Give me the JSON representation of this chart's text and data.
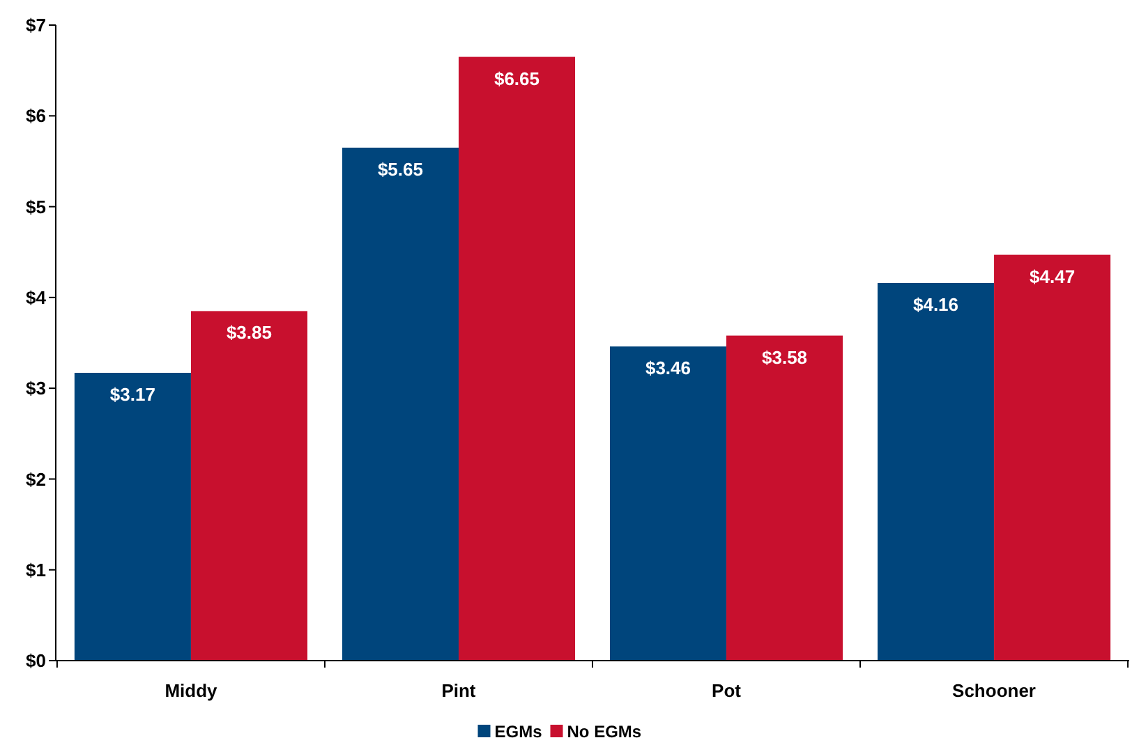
{
  "chart_data": {
    "type": "bar",
    "categories": [
      "Middy",
      "Pint",
      "Pot",
      "Schooner"
    ],
    "series": [
      {
        "name": "EGMs",
        "color": "#00457c",
        "values": [
          3.17,
          5.65,
          3.46,
          4.16
        ],
        "value_labels": [
          "$3.17",
          "$5.65",
          "$3.46",
          "$4.16"
        ]
      },
      {
        "name": "No EGMs",
        "color": "#c8102e",
        "values": [
          3.85,
          6.65,
          3.58,
          4.47
        ],
        "value_labels": [
          "$3.85",
          "$6.65",
          "$3.58",
          "$4.47"
        ]
      }
    ],
    "ylim": [
      0,
      7
    ],
    "yticks": [
      {
        "value": 0,
        "label": "$0"
      },
      {
        "value": 1,
        "label": "$1"
      },
      {
        "value": 2,
        "label": "$2"
      },
      {
        "value": 3,
        "label": "$3"
      },
      {
        "value": 4,
        "label": "$4"
      },
      {
        "value": 5,
        "label": "$5"
      },
      {
        "value": 6,
        "label": "$6"
      },
      {
        "value": 7,
        "label": "$7"
      }
    ],
    "grid": false,
    "legend": "bottom"
  }
}
